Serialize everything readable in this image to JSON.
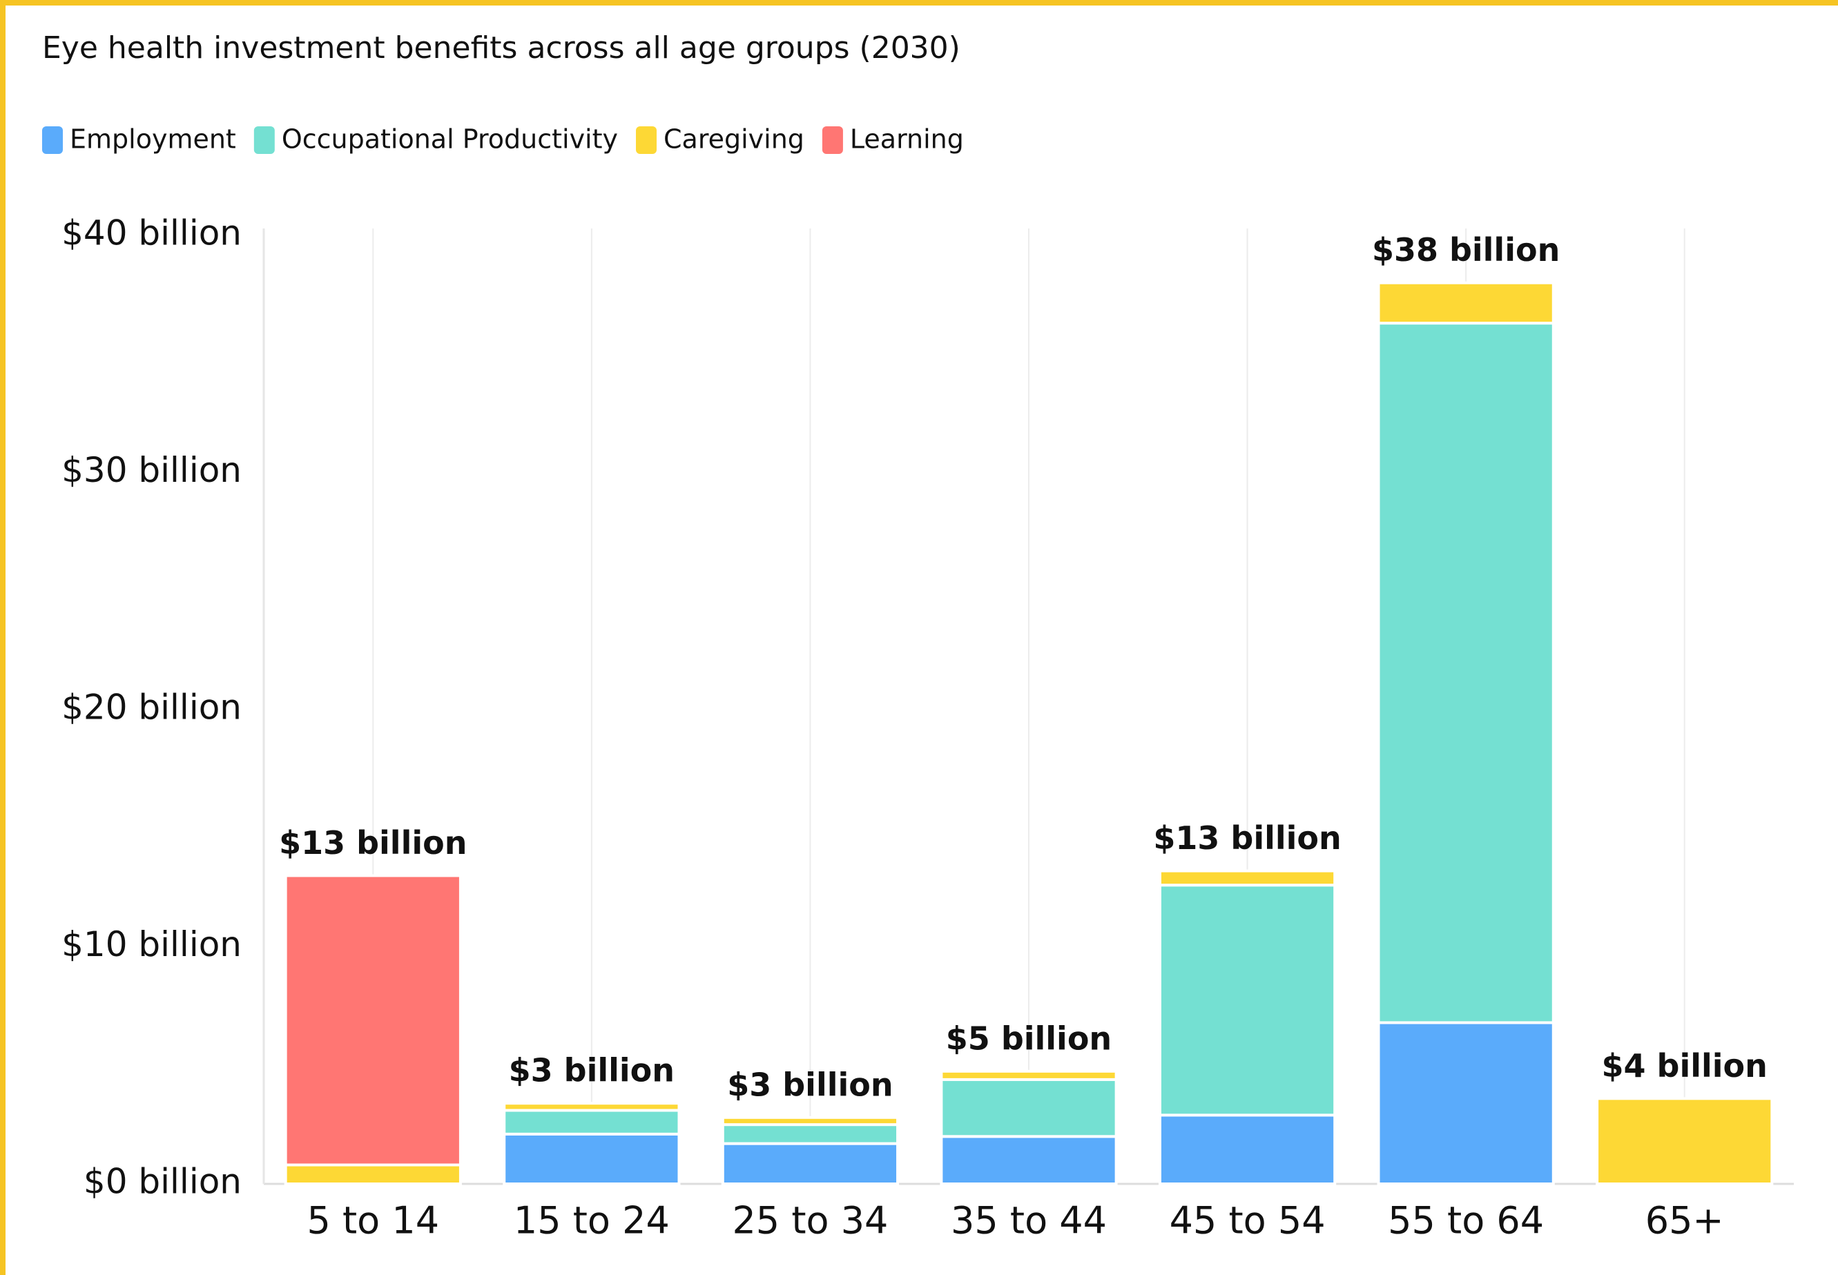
{
  "chart_data": {
    "type": "stacked_bar",
    "title": "Eye health investment benefits across all age groups (2030)",
    "categories": [
      "5 to 14",
      "15 to 24",
      "25 to 34",
      "35 to 44",
      "45 to 54",
      "55 to 64",
      "65+"
    ],
    "series": [
      {
        "name": "Employment",
        "color": "#5aabfb",
        "values": [
          0,
          2.1,
          1.7,
          2.0,
          2.9,
          6.8,
          0
        ]
      },
      {
        "name": "Occupational Productivity",
        "color": "#74e0d2",
        "values": [
          0,
          1.0,
          0.8,
          2.4,
          9.7,
          29.5,
          0
        ]
      },
      {
        "name": "Caregiving",
        "color": "#fdd835",
        "values": [
          0.8,
          0.3,
          0.3,
          0.35,
          0.6,
          1.7,
          3.6
        ]
      },
      {
        "name": "Learning",
        "color": "#ff7673",
        "values": [
          12.2,
          0,
          0,
          0,
          0,
          0,
          0
        ]
      }
    ],
    "totals": {
      "values": [
        13,
        3,
        3,
        5,
        13,
        38,
        4
      ],
      "value_labels": [
        "$13 billion",
        "$3 billion",
        "$3 billion",
        "$5 billion",
        "$13 billion",
        "$38 billion",
        "$4 billion"
      ]
    },
    "ylim": [
      0,
      40
    ],
    "yticks": [
      {
        "value": 0,
        "label": "$0 billion"
      },
      {
        "value": 10,
        "label": "$10 billion"
      },
      {
        "value": 20,
        "label": "$20 billion"
      },
      {
        "value": 30,
        "label": "$30 billion"
      },
      {
        "value": 40,
        "label": "$40 billion"
      }
    ],
    "grid": true,
    "legend": "top"
  }
}
